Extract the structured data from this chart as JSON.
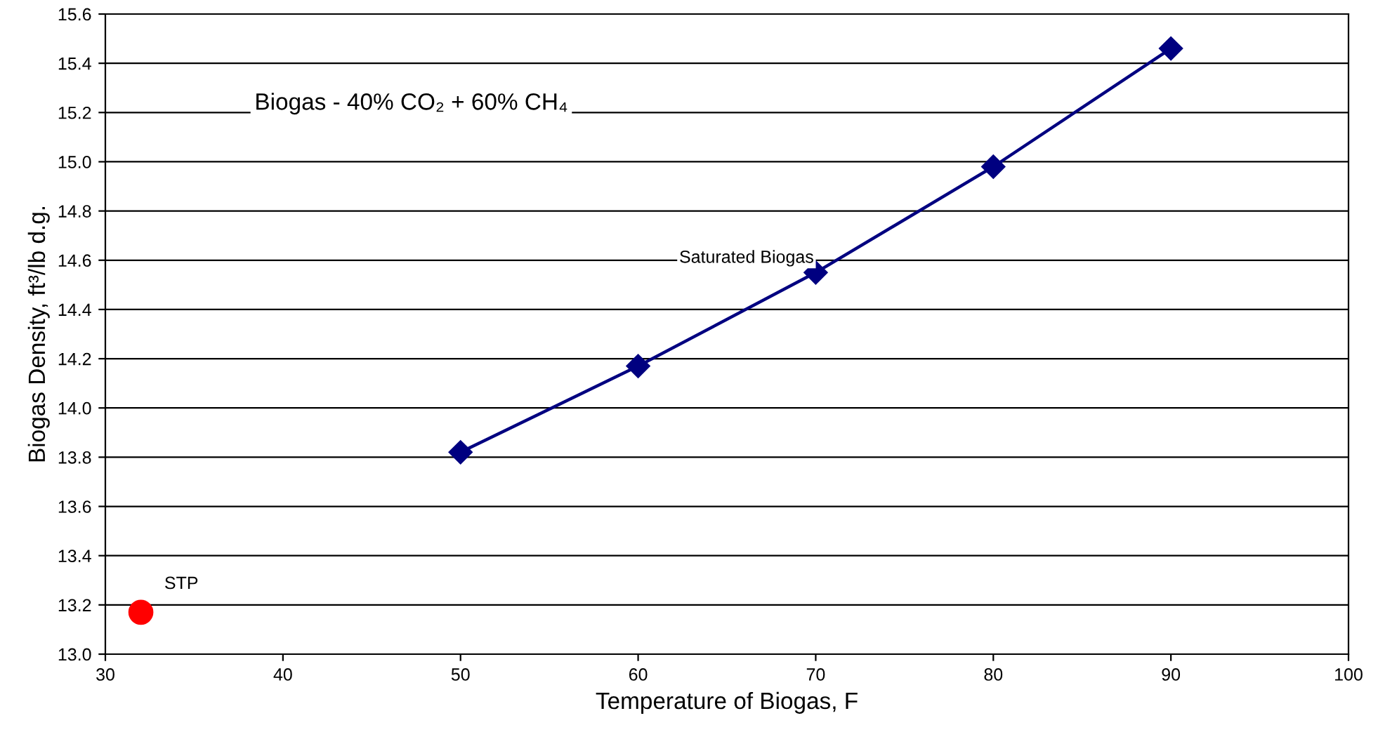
{
  "chart_data": {
    "type": "line",
    "xlabel": "Temperature of Biogas, F",
    "ylabel": "Biogas Density, ft³/lb d.g.",
    "annotations": [
      "Biogas - 40% CO₂ + 60% CH₄"
    ],
    "series": [
      {
        "name": "Saturated Biogas",
        "color": "#000080",
        "marker": "diamond",
        "x": [
          50,
          60,
          70,
          80,
          90
        ],
        "values": [
          13.82,
          14.17,
          14.55,
          14.98,
          15.46
        ]
      },
      {
        "name": "STP",
        "type": "scatter",
        "color": "#ff0000",
        "marker": "circle",
        "x": [
          32
        ],
        "values": [
          13.17
        ]
      }
    ],
    "xlim": [
      30,
      100
    ],
    "xticks": [
      30,
      40,
      50,
      60,
      70,
      80,
      90,
      100
    ],
    "ylim": [
      13.0,
      15.6
    ],
    "yticks": [
      {
        "value": 13.0,
        "label": "13.0"
      },
      13.2,
      13.4,
      13.6,
      13.8,
      {
        "value": 14.0,
        "label": "14.0"
      },
      14.2,
      14.4,
      14.6,
      14.8,
      {
        "value": 15.0,
        "label": "15.0"
      },
      15.2,
      15.4,
      15.6
    ],
    "grid": "y",
    "legend": false
  }
}
